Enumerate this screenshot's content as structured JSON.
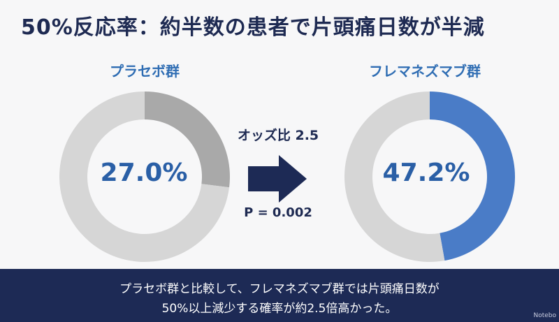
{
  "title": "50%反応率：約半数の患者で片頭痛日数が半減",
  "chart_data": [
    {
      "type": "pie",
      "title": "プラセボ群",
      "value_label": "27.0%",
      "values": [
        27.0,
        73.0
      ],
      "colors": [
        "#a9a9a9",
        "#d6d6d6"
      ]
    },
    {
      "type": "pie",
      "title": "フレマネズマブ群",
      "value_label": "47.2%",
      "values": [
        47.2,
        52.8
      ],
      "colors": [
        "#4a7cc7",
        "#d6d6d6"
      ]
    }
  ],
  "comparison": {
    "odds_ratio": "オッズ比 2.5",
    "p_value": "P = 0.002"
  },
  "banner": {
    "line1": "プラセボ群と比較して、フレマネズマブ群では片頭痛日数が",
    "line2": "50%以上減少する確率が約2.5倍高かった。"
  },
  "watermark": "Notebo",
  "colors": {
    "title": "#1e2a52",
    "accent": "#2f6db3",
    "banner": "#1d2a55"
  }
}
